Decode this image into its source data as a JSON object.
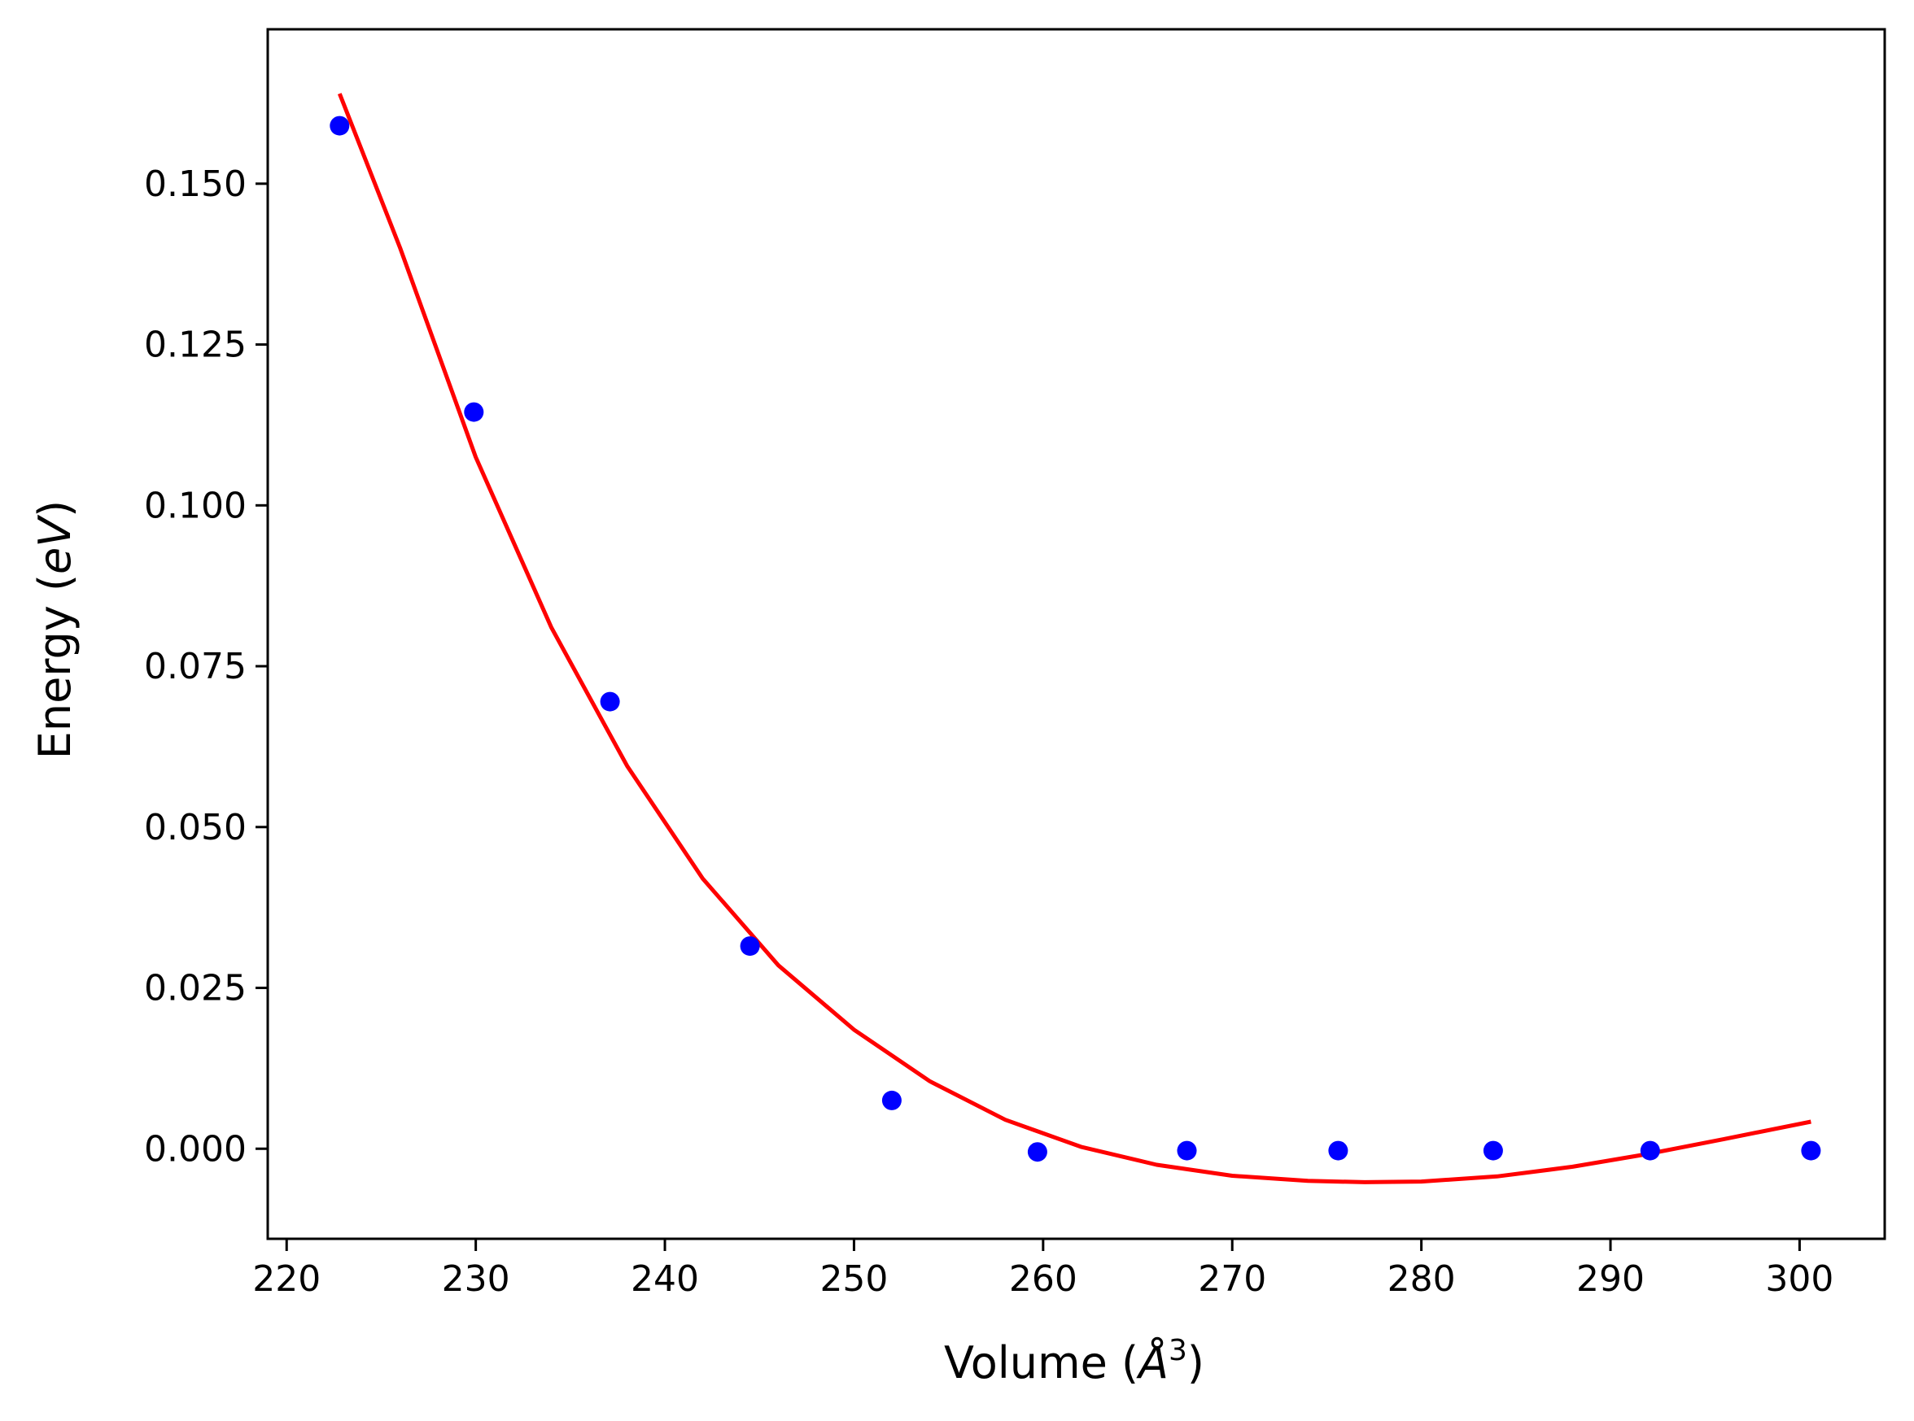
{
  "chart_data": {
    "type": "scatter",
    "xlabel_prefix": "Volume (",
    "xlabel_unit": "Å",
    "xlabel_power": "3",
    "xlabel_suffix": ")",
    "ylabel_prefix": "Energy (",
    "ylabel_unit": "eV",
    "ylabel_suffix": ")",
    "xlim": [
      219,
      304.5
    ],
    "ylim": [
      -0.014,
      0.174
    ],
    "x_ticks": [
      220,
      230,
      240,
      250,
      260,
      270,
      280,
      290,
      300
    ],
    "x_tick_labels": [
      "220",
      "230",
      "240",
      "250",
      "260",
      "270",
      "280",
      "290",
      "300"
    ],
    "y_ticks": [
      0.0,
      0.025,
      0.05,
      0.075,
      0.1,
      0.125,
      0.15
    ],
    "y_tick_labels": [
      "0.000",
      "0.025",
      "0.050",
      "0.075",
      "0.100",
      "0.125",
      "0.150"
    ],
    "grid": false,
    "series": [
      {
        "kind": "points",
        "color": "#0000ff",
        "x": [
          222.8,
          229.9,
          237.1,
          244.5,
          252.0,
          259.7,
          267.6,
          275.6,
          283.8,
          292.1,
          300.6
        ],
        "y": [
          0.159,
          0.1145,
          0.0695,
          0.0315,
          0.0075,
          -0.0005,
          -0.0003,
          -0.0003,
          -0.0003,
          -0.0003,
          -0.0003
        ]
      },
      {
        "kind": "fit-line",
        "color": "#ff0000",
        "x": [
          222.8,
          226,
          230,
          234,
          238,
          242,
          246,
          250,
          254,
          258,
          262,
          266,
          270,
          274,
          277,
          280,
          284,
          288,
          292,
          296,
          300.6
        ],
        "y": [
          0.164,
          0.14,
          0.1075,
          0.081,
          0.0595,
          0.042,
          0.0285,
          0.0185,
          0.0105,
          0.0045,
          0.0003,
          -0.0025,
          -0.0042,
          -0.005,
          -0.0052,
          -0.0051,
          -0.0043,
          -0.0028,
          -0.0008,
          0.0015,
          0.0042
        ]
      }
    ]
  }
}
